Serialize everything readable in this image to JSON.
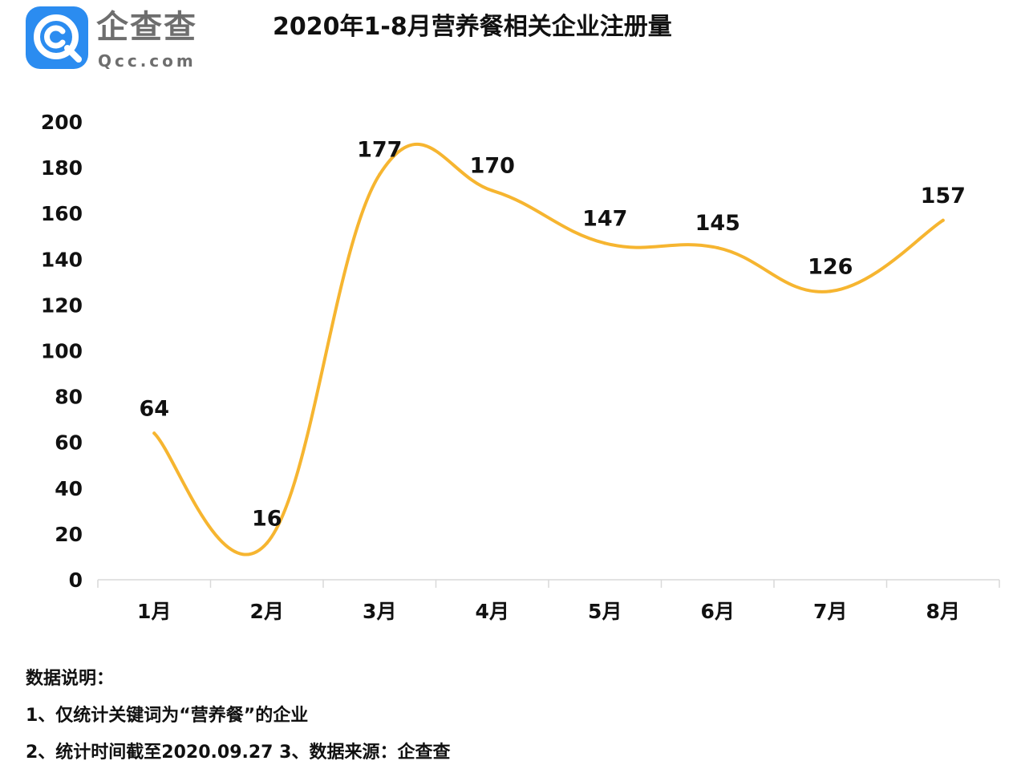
{
  "logo": {
    "name_cn": "企查查",
    "name_en": "Qcc.com"
  },
  "chart_data": {
    "type": "line",
    "title": "2020年1-8月营养餐相关企业注册量",
    "categories": [
      "1月",
      "2月",
      "3月",
      "4月",
      "5月",
      "6月",
      "7月",
      "8月"
    ],
    "values": [
      64,
      16,
      177,
      170,
      147,
      145,
      126,
      157
    ],
    "data_labels": [
      "64",
      "16",
      "177",
      "170",
      "147",
      "145",
      "126",
      "157"
    ],
    "y_ticks": [
      "0",
      "20",
      "40",
      "60",
      "80",
      "100",
      "120",
      "140",
      "160",
      "180",
      "200"
    ],
    "ylim": [
      0,
      200
    ],
    "line_style": "smooth",
    "grid": false,
    "colors": {
      "line": "#f6b530",
      "axis": "#d9d9d9",
      "logo": "#2b8cf0"
    }
  },
  "notes": {
    "heading": "数据说明：",
    "line1": "1、仅统计关键词为“营养餐”的企业",
    "line2": "2、统计时间截至2020.09.27  3、数据来源：企查查"
  }
}
